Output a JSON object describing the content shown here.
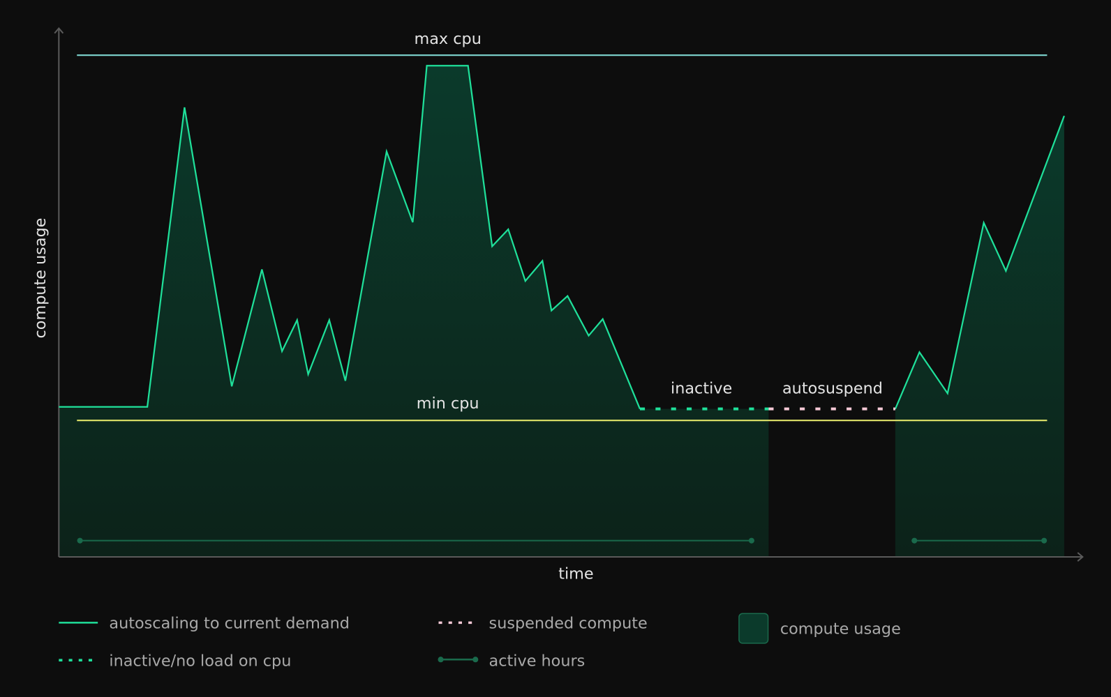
{
  "chart_data": {
    "type": "area",
    "xlabel": "time",
    "ylabel": "compute usage",
    "xlim": [
      0,
      100
    ],
    "ylim": [
      0,
      100
    ],
    "grid": false,
    "legend_placement": "bottom",
    "reference_lines": {
      "max_cpu": {
        "label": "max cpu",
        "value": 100,
        "x_range": [
          1.8,
          98.3
        ],
        "color": "#7fd6d0"
      },
      "min_cpu": {
        "label": "min cpu",
        "value": 27.2,
        "x_range": [
          1.8,
          98.3
        ],
        "color": "#e2e56a"
      }
    },
    "autoscaling": {
      "color": "#1fe09a",
      "segments": [
        [
          [
            0,
            29.9
          ],
          [
            8.8,
            29.9
          ],
          [
            12.5,
            89.6
          ],
          [
            17.2,
            34.0
          ],
          [
            20.2,
            57.3
          ],
          [
            22.2,
            41.0
          ],
          [
            23.7,
            47.2
          ],
          [
            24.8,
            36.4
          ],
          [
            26.9,
            47.2
          ],
          [
            28.5,
            35.1
          ],
          [
            32.6,
            80.8
          ],
          [
            35.2,
            66.7
          ],
          [
            36.6,
            97.9
          ],
          [
            40.7,
            97.9
          ],
          [
            43.1,
            61.9
          ],
          [
            44.7,
            65.3
          ],
          [
            46.4,
            55.0
          ],
          [
            48.1,
            59.0
          ],
          [
            49.0,
            49.1
          ],
          [
            50.6,
            52.0
          ],
          [
            52.7,
            44.1
          ],
          [
            54.1,
            47.4
          ],
          [
            57.8,
            29.5
          ]
        ],
        [
          [
            83.2,
            29.5
          ],
          [
            85.6,
            40.8
          ],
          [
            88.4,
            32.6
          ],
          [
            92.0,
            66.6
          ],
          [
            94.2,
            57.0
          ],
          [
            100,
            87.9
          ]
        ]
      ]
    },
    "inactive": {
      "label": "inactive",
      "x_range": [
        57.8,
        70.6
      ],
      "value": 29.5,
      "color": "#1fe09a"
    },
    "suspended": {
      "label": "autosuspend",
      "x_range": [
        70.6,
        83.2
      ],
      "value": 29.5,
      "color": "#f6c9d6"
    },
    "compute_usage_regions": [
      [
        0,
        70.6
      ],
      [
        83.2,
        100
      ]
    ],
    "compute_usage_color": "#0b3a2b",
    "active_hours": [
      [
        2.1,
        68.9
      ],
      [
        85.1,
        98.0
      ]
    ],
    "active_hours_color": "#1a6a4c",
    "legend": [
      {
        "key": "autoscaling",
        "label": "autoscaling to current demand"
      },
      {
        "key": "suspended",
        "label": "suspended compute"
      },
      {
        "key": "usage",
        "label": "compute usage"
      },
      {
        "key": "inactive",
        "label": "inactive/no load on cpu"
      },
      {
        "key": "active",
        "label": "active hours"
      }
    ]
  }
}
